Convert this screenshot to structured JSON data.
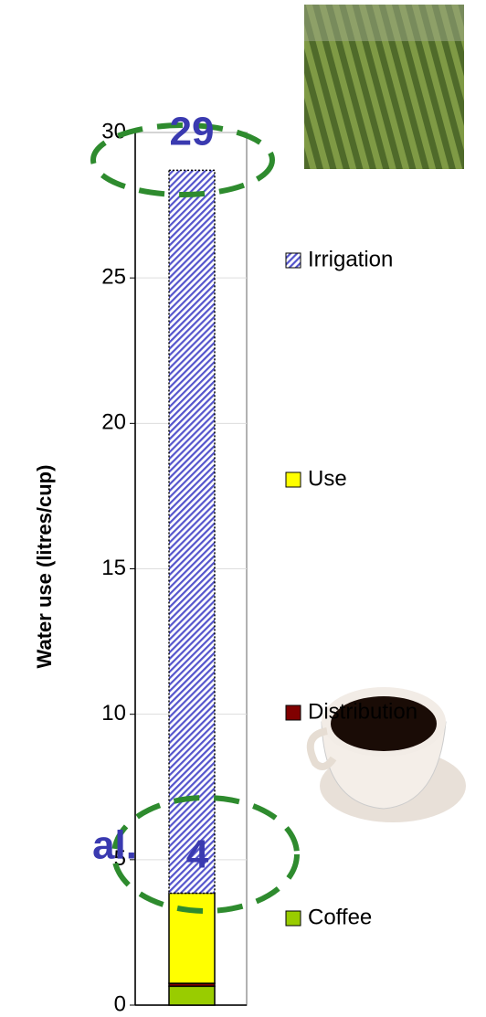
{
  "chart_data": {
    "type": "stacked-bar",
    "y_label": "Water use (litres/cup)",
    "categories": [
      null
    ],
    "series": [
      {
        "name": "Coffee",
        "color": "#99cc00",
        "values": [
          0.65
        ]
      },
      {
        "name": "Distribution",
        "color": "#800000",
        "values": [
          0.1
        ]
      },
      {
        "name": "Use",
        "color": "#ffff00",
        "values": [
          3.1
        ]
      },
      {
        "name": "Irrigation",
        "color": "#5555cc",
        "hatch": true,
        "values": [
          24.85
        ]
      }
    ],
    "ylim": [
      0,
      30
    ],
    "yticks": [
      0,
      5,
      10,
      15,
      20,
      25,
      30
    ],
    "grid": true,
    "annotations": [
      "29",
      "4",
      "al."
    ]
  }
}
